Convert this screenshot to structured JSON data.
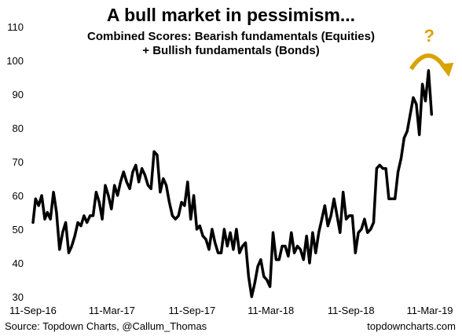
{
  "chart_data": {
    "type": "line",
    "title": "A bull market in pessimism...",
    "subtitle_line1": "Combined Scores: Bearish fundamentals (Equities)",
    "subtitle_line2": "+ Bullish fundamentals (Bonds)",
    "xlabel": "",
    "ylabel": "",
    "ylim": [
      30,
      110
    ],
    "yticks": [
      30,
      40,
      50,
      60,
      70,
      80,
      90,
      100,
      110
    ],
    "xlim": [
      "2016-09-11",
      "2019-04-25"
    ],
    "xticks": [
      {
        "date": "2016-09-11",
        "label": "11-Sep-16"
      },
      {
        "date": "2017-03-11",
        "label": "11-Mar-17"
      },
      {
        "date": "2017-09-11",
        "label": "11-Sep-17"
      },
      {
        "date": "2018-03-11",
        "label": "11-Mar-18"
      },
      {
        "date": "2018-09-11",
        "label": "11-Sep-18"
      },
      {
        "date": "2019-03-11",
        "label": "11-Mar-19"
      }
    ],
    "grid": false,
    "legend": "none",
    "series": [
      {
        "color": "#000000",
        "points": [
          [
            "2016-09-11",
            52
          ],
          [
            "2016-09-17",
            59
          ],
          [
            "2016-09-24",
            57
          ],
          [
            "2016-10-01",
            60
          ],
          [
            "2016-10-08",
            53
          ],
          [
            "2016-10-14",
            55
          ],
          [
            "2016-10-21",
            53
          ],
          [
            "2016-10-28",
            61
          ],
          [
            "2016-11-04",
            55
          ],
          [
            "2016-11-11",
            44
          ],
          [
            "2016-11-18",
            49
          ],
          [
            "2016-11-25",
            52
          ],
          [
            "2016-12-02",
            43
          ],
          [
            "2016-12-09",
            45
          ],
          [
            "2016-12-16",
            48
          ],
          [
            "2016-12-23",
            52
          ],
          [
            "2016-12-30",
            51
          ],
          [
            "2017-01-06",
            54
          ],
          [
            "2017-01-13",
            52
          ],
          [
            "2017-01-20",
            54
          ],
          [
            "2017-01-27",
            54
          ],
          [
            "2017-02-03",
            61
          ],
          [
            "2017-02-10",
            58
          ],
          [
            "2017-02-17",
            53
          ],
          [
            "2017-02-24",
            63
          ],
          [
            "2017-03-03",
            60
          ],
          [
            "2017-03-10",
            56
          ],
          [
            "2017-03-17",
            63
          ],
          [
            "2017-03-24",
            60
          ],
          [
            "2017-03-31",
            64
          ],
          [
            "2017-04-07",
            67
          ],
          [
            "2017-04-14",
            64
          ],
          [
            "2017-04-21",
            62
          ],
          [
            "2017-04-28",
            67
          ],
          [
            "2017-05-05",
            69
          ],
          [
            "2017-05-12",
            64
          ],
          [
            "2017-05-19",
            68
          ],
          [
            "2017-05-26",
            66
          ],
          [
            "2017-06-02",
            63
          ],
          [
            "2017-06-09",
            62
          ],
          [
            "2017-06-16",
            73
          ],
          [
            "2017-06-23",
            72
          ],
          [
            "2017-06-30",
            61
          ],
          [
            "2017-07-07",
            65
          ],
          [
            "2017-07-14",
            63
          ],
          [
            "2017-07-21",
            58
          ],
          [
            "2017-07-28",
            54
          ],
          [
            "2017-08-04",
            53
          ],
          [
            "2017-08-11",
            54
          ],
          [
            "2017-08-18",
            58
          ],
          [
            "2017-08-25",
            57
          ],
          [
            "2017-09-01",
            64
          ],
          [
            "2017-09-08",
            53
          ],
          [
            "2017-09-15",
            60
          ],
          [
            "2017-09-22",
            50
          ],
          [
            "2017-09-29",
            51
          ],
          [
            "2017-10-06",
            48
          ],
          [
            "2017-10-13",
            47
          ],
          [
            "2017-10-20",
            44
          ],
          [
            "2017-10-27",
            50
          ],
          [
            "2017-11-03",
            46
          ],
          [
            "2017-11-10",
            43
          ],
          [
            "2017-11-17",
            43
          ],
          [
            "2017-11-24",
            50
          ],
          [
            "2017-12-01",
            45
          ],
          [
            "2017-12-08",
            49
          ],
          [
            "2017-12-15",
            44
          ],
          [
            "2017-12-22",
            50
          ],
          [
            "2017-12-29",
            43
          ],
          [
            "2018-01-05",
            45
          ],
          [
            "2018-01-12",
            46
          ],
          [
            "2018-01-19",
            36
          ],
          [
            "2018-01-26",
            30
          ],
          [
            "2018-02-02",
            34
          ],
          [
            "2018-02-09",
            39
          ],
          [
            "2018-02-16",
            41
          ],
          [
            "2018-02-23",
            36
          ],
          [
            "2018-03-02",
            35
          ],
          [
            "2018-03-09",
            33
          ],
          [
            "2018-03-16",
            49
          ],
          [
            "2018-03-23",
            41
          ],
          [
            "2018-03-30",
            41
          ],
          [
            "2018-04-06",
            45
          ],
          [
            "2018-04-13",
            45
          ],
          [
            "2018-04-20",
            42
          ],
          [
            "2018-04-27",
            49
          ],
          [
            "2018-05-04",
            43
          ],
          [
            "2018-05-11",
            45
          ],
          [
            "2018-05-18",
            44
          ],
          [
            "2018-05-25",
            41
          ],
          [
            "2018-06-01",
            48
          ],
          [
            "2018-06-08",
            40
          ],
          [
            "2018-06-15",
            49
          ],
          [
            "2018-06-22",
            43
          ],
          [
            "2018-06-29",
            49
          ],
          [
            "2018-07-06",
            53
          ],
          [
            "2018-07-13",
            57
          ],
          [
            "2018-07-20",
            51
          ],
          [
            "2018-07-27",
            54
          ],
          [
            "2018-08-03",
            59
          ],
          [
            "2018-08-10",
            54
          ],
          [
            "2018-08-17",
            49
          ],
          [
            "2018-08-24",
            61
          ],
          [
            "2018-08-31",
            53
          ],
          [
            "2018-09-07",
            54
          ],
          [
            "2018-09-14",
            54
          ],
          [
            "2018-09-21",
            43
          ],
          [
            "2018-09-28",
            49
          ],
          [
            "2018-10-05",
            50
          ],
          [
            "2018-10-12",
            53
          ],
          [
            "2018-10-19",
            49
          ],
          [
            "2018-10-26",
            50
          ],
          [
            "2018-11-02",
            52
          ],
          [
            "2018-11-09",
            68
          ],
          [
            "2018-11-16",
            69
          ],
          [
            "2018-11-23",
            68
          ],
          [
            "2018-11-30",
            68
          ],
          [
            "2018-12-07",
            59
          ],
          [
            "2018-12-14",
            59
          ],
          [
            "2018-12-21",
            59
          ],
          [
            "2018-12-28",
            67
          ],
          [
            "2019-01-04",
            71
          ],
          [
            "2019-01-11",
            77
          ],
          [
            "2019-01-18",
            79
          ],
          [
            "2019-01-25",
            84
          ],
          [
            "2019-02-01",
            89
          ],
          [
            "2019-02-08",
            87
          ],
          [
            "2019-02-15",
            78
          ],
          [
            "2019-02-22",
            93
          ],
          [
            "2019-03-01",
            88
          ],
          [
            "2019-03-08",
            97
          ],
          [
            "2019-03-15",
            84
          ]
        ]
      }
    ],
    "annotations": [
      {
        "text": "?",
        "color": "#d9a300"
      }
    ]
  },
  "footer": {
    "source": "Source: Topdown Charts, @Callum_Thomas",
    "site": "topdowncharts.com"
  },
  "colors": {
    "line": "#000000",
    "accent": "#d9a300",
    "axis": "#000000"
  }
}
